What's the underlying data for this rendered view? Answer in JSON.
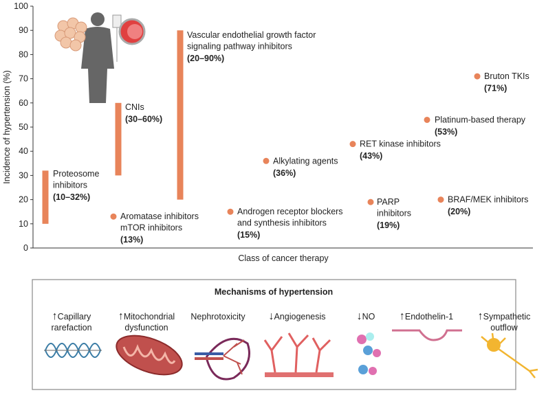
{
  "chart_data": {
    "type": "range",
    "y_label": "Incidence of hypertension (%)",
    "x_label": "Class of cancer therapy",
    "ylim": [
      0,
      100
    ],
    "yticks": [
      0,
      10,
      20,
      30,
      40,
      50,
      60,
      70,
      80,
      90,
      100
    ],
    "color": "#e8845a",
    "ranges": [
      {
        "lines": [
          "Proteosome",
          "inhibitors"
        ],
        "low": 10,
        "high": 32,
        "value_label": "(10–32%)"
      },
      {
        "lines": [
          "CNIs"
        ],
        "low": 30,
        "high": 60,
        "value_label": "(30–60%)"
      },
      {
        "lines": [
          "Vascular endothelial growth factor",
          "signaling pathway inhibitors"
        ],
        "low": 20,
        "high": 90,
        "value_label": "(20–90%)"
      }
    ],
    "points": [
      {
        "lines": [
          "Aromatase inhibitors",
          "mTOR inhibitors"
        ],
        "value": 13,
        "value_label": "(13%)"
      },
      {
        "lines": [
          "Androgen receptor blockers",
          "and synthesis inhibitors"
        ],
        "value": 15,
        "value_label": "(15%)"
      },
      {
        "lines": [
          "Alkylating agents"
        ],
        "value": 36,
        "value_label": "(36%)"
      },
      {
        "lines": [
          "RET kinase inhibitors"
        ],
        "value": 43,
        "value_label": "(43%)"
      },
      {
        "lines": [
          "PARP",
          "inhibitors"
        ],
        "value": 19,
        "value_label": "(19%)"
      },
      {
        "lines": [
          "Platinum-based therapy"
        ],
        "value": 53,
        "value_label": "(53%)"
      },
      {
        "lines": [
          "BRAF/MEK inhibitors"
        ],
        "value": 20,
        "value_label": "(20%)"
      },
      {
        "lines": [
          "Bruton TKIs"
        ],
        "value": 71,
        "value_label": "(71%)"
      }
    ]
  },
  "mechanisms": {
    "title": "Mechanisms of hypertension",
    "items": [
      {
        "arrow": "↑",
        "lines": [
          "Capillary",
          "rarefaction"
        ]
      },
      {
        "arrow": "↑",
        "lines": [
          "Mitochondrial",
          "dysfunction"
        ]
      },
      {
        "lines": [
          "Nephrotoxicity"
        ]
      },
      {
        "arrow": "↓",
        "lines": [
          "Angiogenesis"
        ]
      },
      {
        "arrow": "↓",
        "lines": [
          "NO"
        ]
      },
      {
        "arrow": "↑",
        "lines": [
          "Endothelin-1"
        ]
      },
      {
        "arrow": "↑",
        "lines": [
          "Sympathetic",
          "outflow"
        ]
      }
    ]
  }
}
